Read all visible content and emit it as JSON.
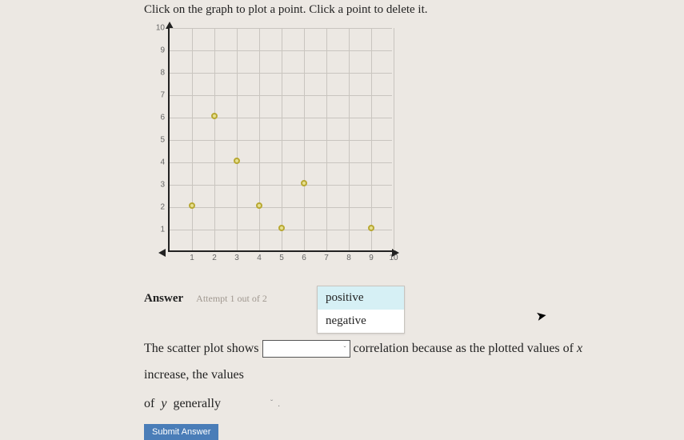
{
  "instruction": "Click on the graph to plot a point. Click a point to delete it.",
  "graph": {
    "type": "scatter",
    "xlim": [
      0,
      10
    ],
    "ylim": [
      0,
      10
    ],
    "xtick_step": 1,
    "ytick_step": 1,
    "background_color": "#ece8e3",
    "grid_color": "#c9c5bf",
    "axis_color": "#222222",
    "tick_fontsize": 10,
    "tick_color": "#666666",
    "point_fill": "#e6e092",
    "point_border": "#b8a832",
    "point_radius": 4,
    "points": [
      {
        "x": 1,
        "y": 2
      },
      {
        "x": 2,
        "y": 6
      },
      {
        "x": 3,
        "y": 4
      },
      {
        "x": 4,
        "y": 2
      },
      {
        "x": 5,
        "y": 1
      },
      {
        "x": 6,
        "y": 3
      },
      {
        "x": 9,
        "y": 1
      }
    ],
    "y_ticks": [
      "10",
      "9",
      "8",
      "7",
      "6",
      "5",
      "4",
      "3",
      "2",
      "1"
    ],
    "x_ticks": [
      "1",
      "2",
      "3",
      "4",
      "5",
      "6",
      "7",
      "8",
      "9",
      "10"
    ]
  },
  "answer": {
    "label": "Answer",
    "attempt_text": "Attempt 1 out of 2",
    "dropdown_options": [
      "positive",
      "negative"
    ],
    "dropdown_highlight_index": 0,
    "sentence_part1": "The scatter plot shows",
    "sentence_part2": "correlation because as the plotted values of",
    "var_x": "x",
    "sentence_part3": "increase, the values",
    "sentence_row2_a": "of",
    "var_y": "y",
    "sentence_row2_b": "generally",
    "submit_label": "Submit Answer"
  },
  "icons": {
    "chevron_down": "ˇ"
  }
}
